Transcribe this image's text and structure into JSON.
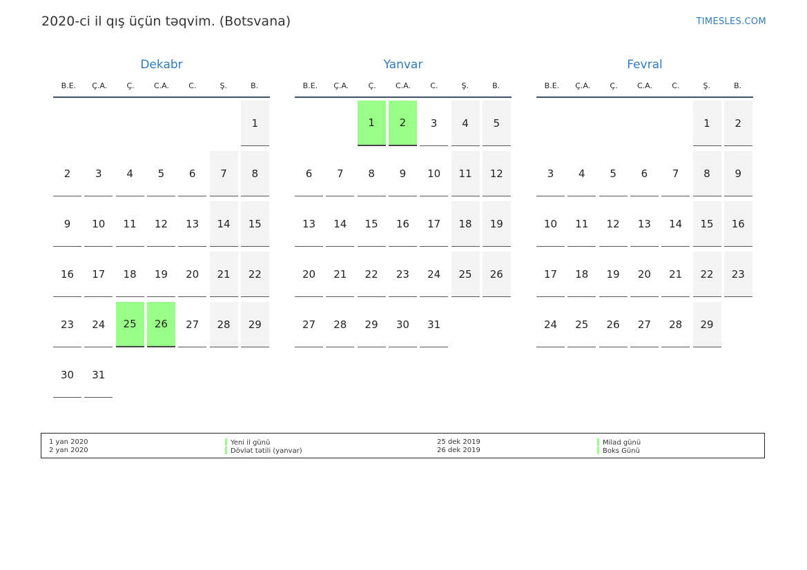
{
  "header": {
    "title": "2020-ci il qış üçün təqvim. (Botsvana)",
    "brand": "TIMESLES.COM"
  },
  "weekdays": [
    "B.E.",
    "Ç.A.",
    "Ç.",
    "C.A.",
    "C.",
    "Ş.",
    "B."
  ],
  "colors": {
    "accent": "#2f7bbf",
    "holiday": "#99ff88",
    "weekend": "#f3f3f3"
  },
  "months": [
    {
      "name": "Dekabr",
      "start_offset": 6,
      "days": 31,
      "holidays": [
        25,
        26
      ]
    },
    {
      "name": "Yanvar",
      "start_offset": 2,
      "days": 31,
      "holidays": [
        1,
        2
      ]
    },
    {
      "name": "Fevral",
      "start_offset": 5,
      "days": 29,
      "holidays": []
    }
  ],
  "legend": {
    "left": [
      {
        "date": "1 yan 2020",
        "name": "Yeni il günü"
      },
      {
        "date": "2 yan 2020",
        "name": "Dövlət tətili (yanvar)"
      }
    ],
    "right": [
      {
        "date": "25 dek 2019",
        "name": "Milad günü"
      },
      {
        "date": "26 dek 2019",
        "name": "Boks Günü"
      }
    ]
  }
}
